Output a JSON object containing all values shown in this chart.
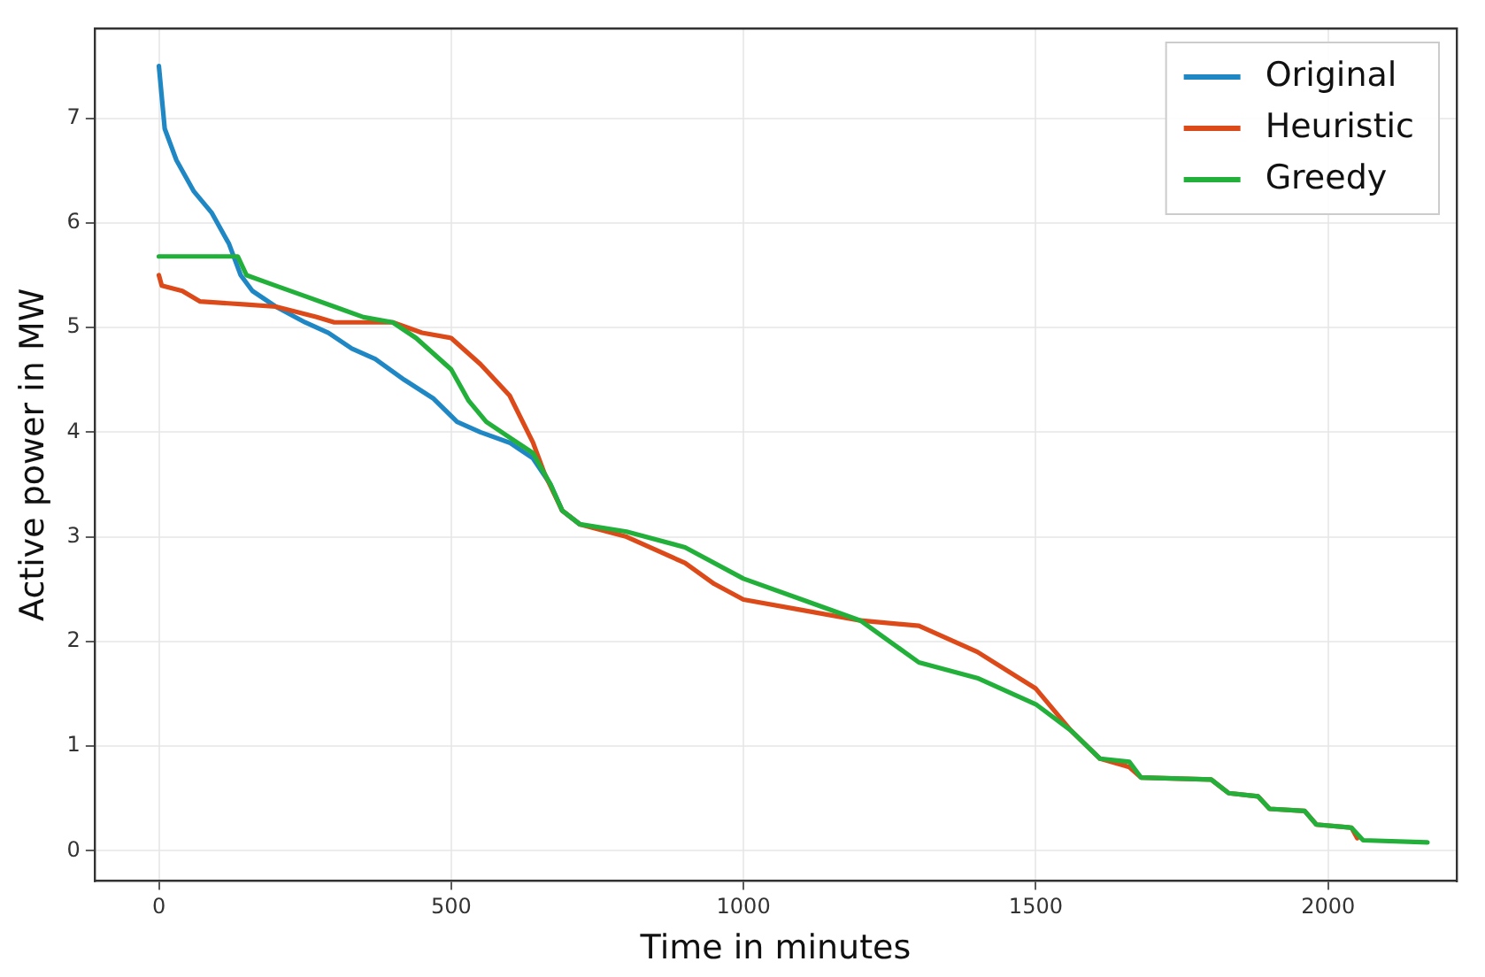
{
  "chart_data": {
    "type": "line",
    "xlabel": "Time in minutes",
    "ylabel": "Active power in MW",
    "xlim": [
      -110,
      2220
    ],
    "ylim": [
      -0.29,
      7.86
    ],
    "xticks": [
      0,
      500,
      1000,
      1500,
      2000
    ],
    "yticks": [
      0,
      1,
      2,
      3,
      4,
      5,
      6,
      7
    ],
    "grid": true,
    "legend": "top right",
    "marker": "none",
    "line_style": "solid",
    "series": [
      {
        "name": "Original",
        "color": "#1f88c4",
        "x": [
          0,
          10,
          30,
          60,
          90,
          120,
          140,
          160,
          200,
          250,
          290,
          330,
          370,
          420,
          470,
          510,
          550,
          600,
          640,
          670,
          690,
          720
        ],
        "values": [
          7.5,
          6.9,
          6.6,
          6.3,
          6.1,
          5.8,
          5.5,
          5.35,
          5.2,
          5.05,
          4.95,
          4.8,
          4.7,
          4.5,
          4.32,
          4.1,
          4.0,
          3.9,
          3.75,
          3.5,
          3.25,
          3.12
        ]
      },
      {
        "name": "Heuristic",
        "color": "#dd4a1a",
        "x": [
          0,
          5,
          40,
          70,
          150,
          200,
          270,
          300,
          350,
          400,
          450,
          500,
          550,
          600,
          640,
          660,
          690,
          720,
          800,
          900,
          950,
          1000,
          1100,
          1200,
          1300,
          1400,
          1500,
          1560,
          1610,
          1660,
          1680,
          1800,
          1830,
          1880,
          1900,
          1960,
          1980,
          2040,
          2050
        ],
        "values": [
          5.5,
          5.4,
          5.35,
          5.25,
          5.22,
          5.2,
          5.1,
          5.05,
          5.05,
          5.05,
          4.95,
          4.9,
          4.65,
          4.35,
          3.9,
          3.6,
          3.25,
          3.12,
          3.0,
          2.75,
          2.55,
          2.4,
          2.3,
          2.2,
          2.15,
          1.9,
          1.55,
          1.15,
          0.88,
          0.8,
          0.7,
          0.68,
          0.55,
          0.52,
          0.4,
          0.38,
          0.25,
          0.22,
          0.12
        ]
      },
      {
        "name": "Greedy",
        "color": "#22b03a",
        "x": [
          0,
          135,
          150,
          200,
          250,
          300,
          350,
          400,
          440,
          500,
          530,
          560,
          600,
          640,
          670,
          690,
          720,
          800,
          900,
          1000,
          1100,
          1200,
          1250,
          1300,
          1400,
          1500,
          1560,
          1610,
          1660,
          1680,
          1800,
          1830,
          1880,
          1900,
          1960,
          1980,
          2040,
          2060,
          2170
        ],
        "values": [
          5.68,
          5.68,
          5.5,
          5.4,
          5.3,
          5.2,
          5.1,
          5.05,
          4.9,
          4.6,
          4.3,
          4.1,
          3.95,
          3.8,
          3.5,
          3.25,
          3.12,
          3.05,
          2.9,
          2.6,
          2.4,
          2.2,
          2.0,
          1.8,
          1.65,
          1.4,
          1.15,
          0.88,
          0.85,
          0.7,
          0.68,
          0.55,
          0.52,
          0.4,
          0.38,
          0.25,
          0.22,
          0.1,
          0.08
        ]
      }
    ]
  }
}
